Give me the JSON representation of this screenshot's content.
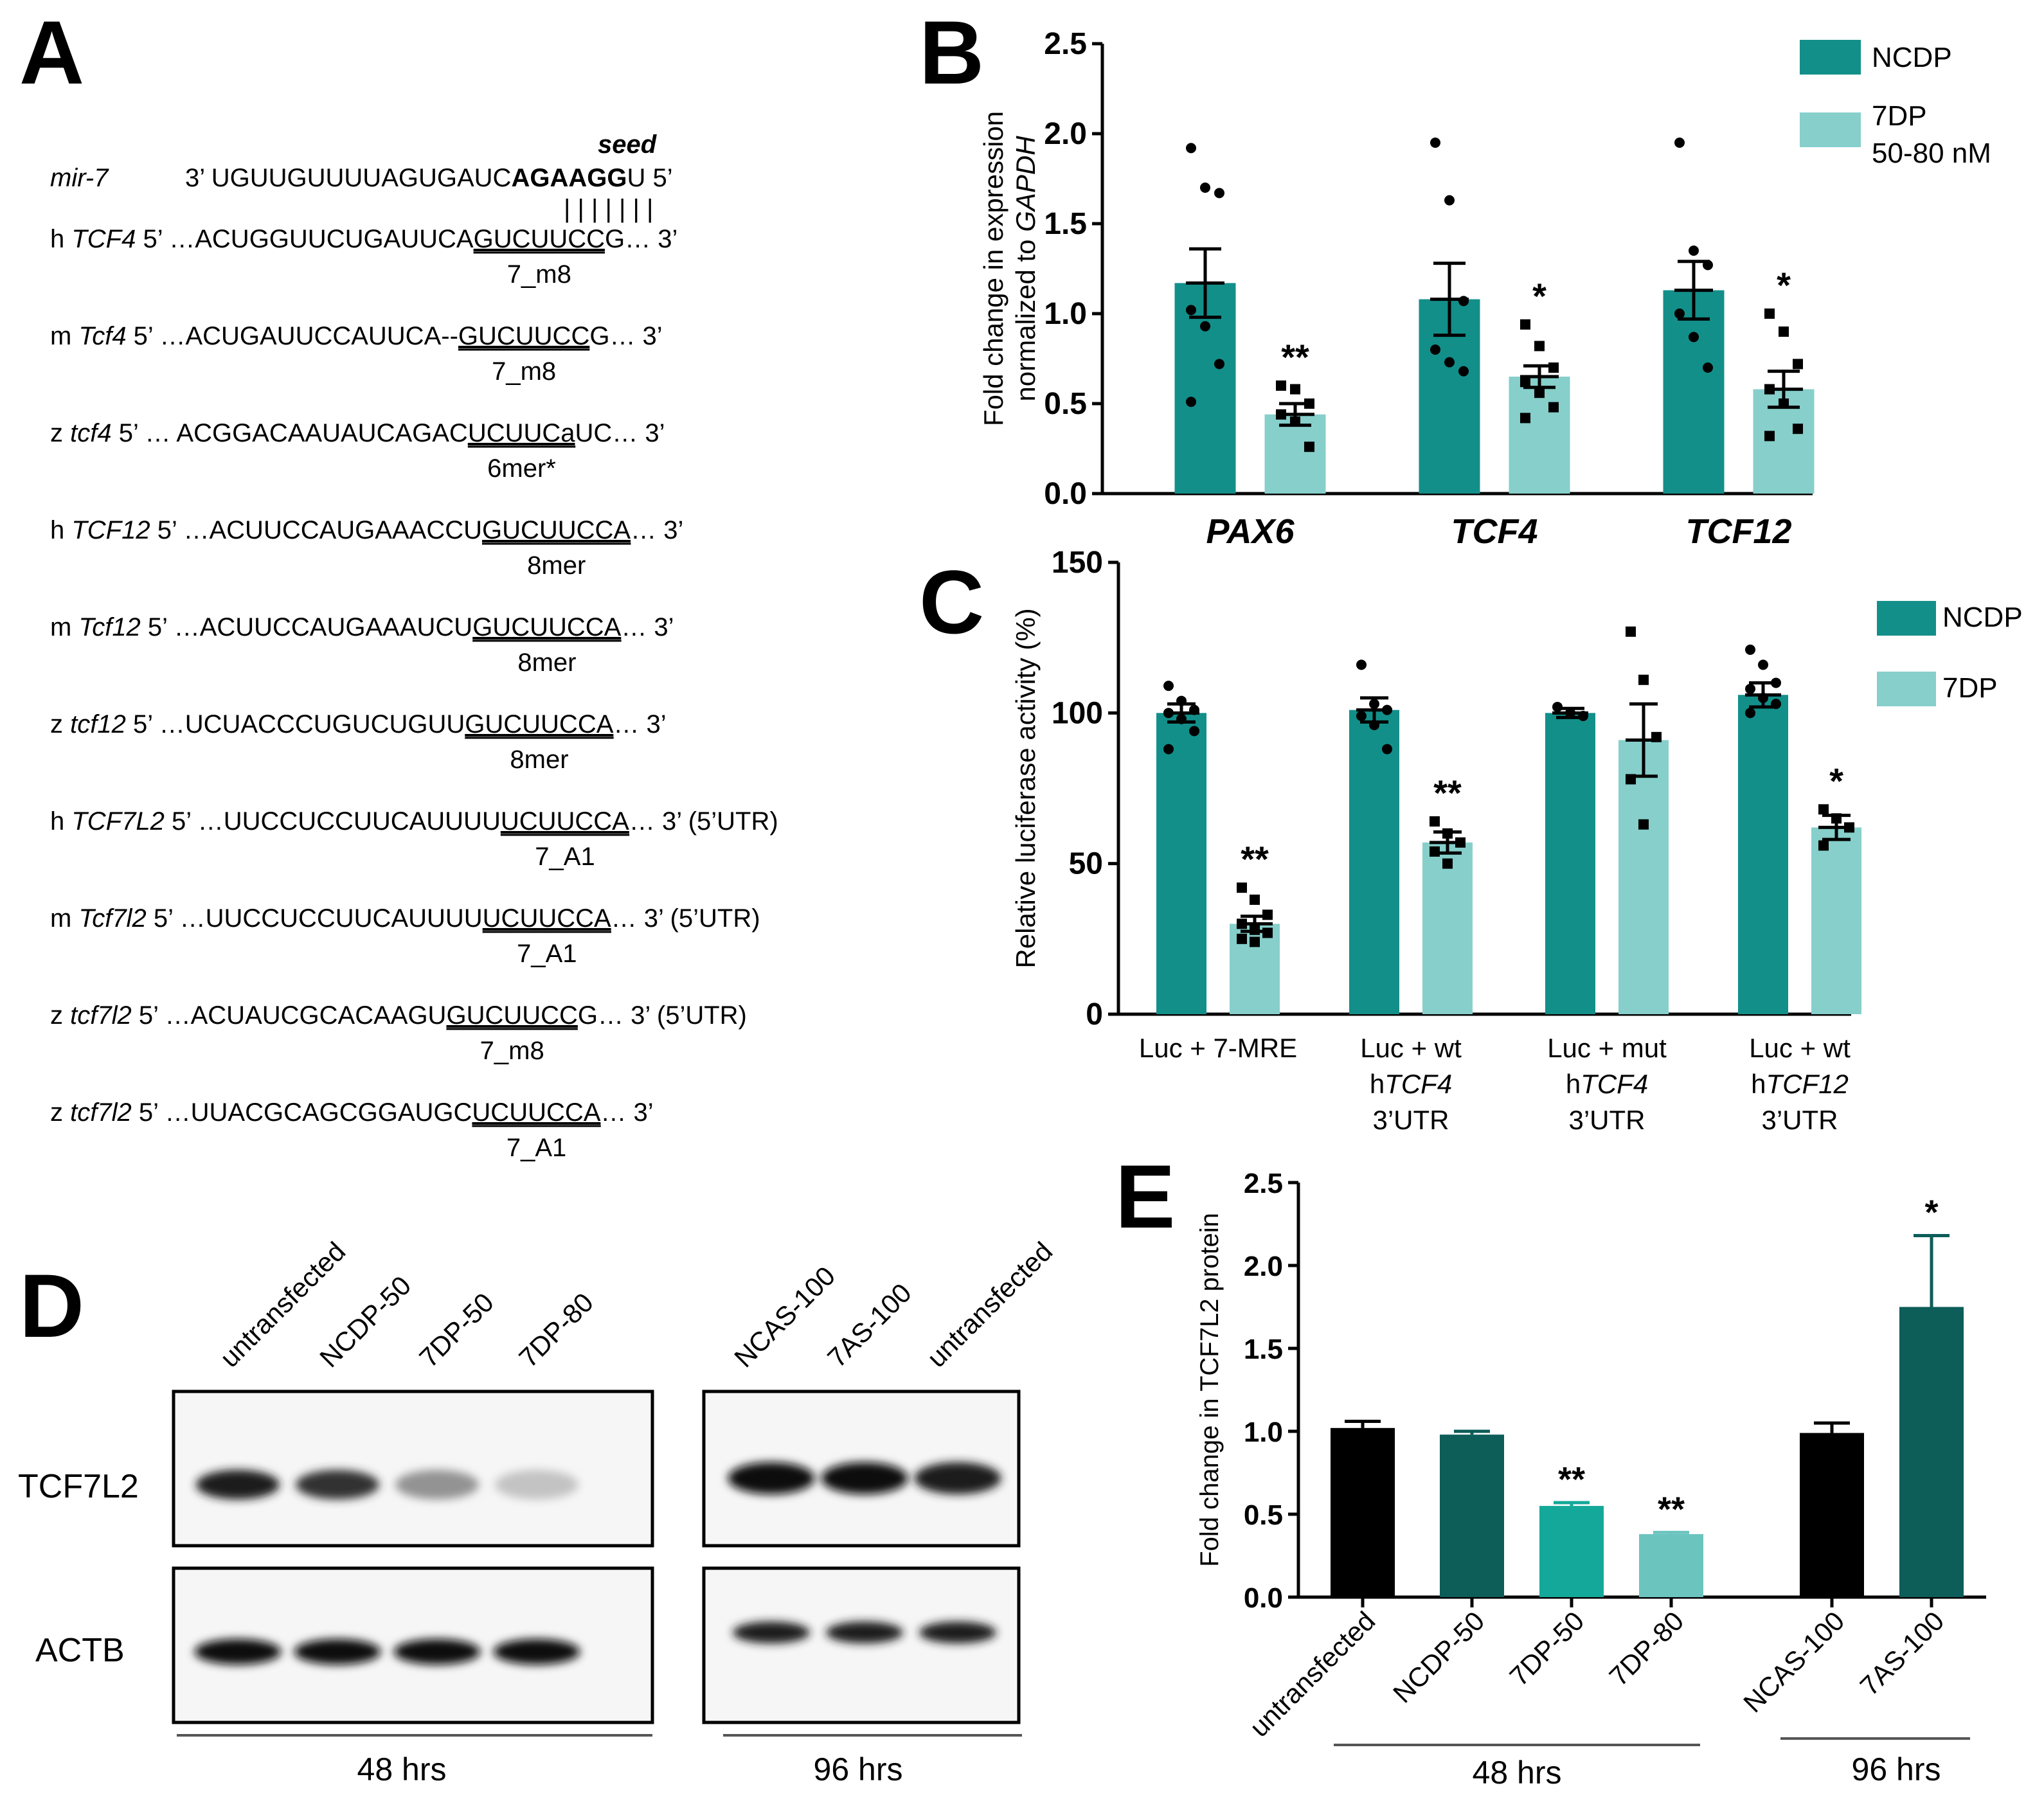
{
  "panels": {
    "A": "A",
    "B": "B",
    "C": "C",
    "D": "D",
    "E": "E"
  },
  "panelA": {
    "seed_label": "seed",
    "mir_name": "mir-7",
    "mir_prefix": "3’ UGUUGUUUUAGUGAUC",
    "mir_bold": "AGAAGG",
    "mir_suffix": "U 5’",
    "pairing_bars": "| | | | | | |",
    "rows": [
      {
        "sp": "h ",
        "gene": "TCF4",
        "pre": " 5’ …ACUGGUUCUGAUUCA",
        "site": "GUCUUCC",
        "post": "G… 3’",
        "type": "7_m8"
      },
      {
        "sp": "m ",
        "gene": "Tcf4",
        "pre": "  5’ …ACUGAUUCCAUUCA--",
        "site": "GUCUUCC",
        "post": "G… 3’",
        "type": "7_m8"
      },
      {
        "sp": "z ",
        "gene": "tcf4",
        "pre": "     5’ … ACGGACAAUAUCAGAC",
        "site": "UCUUCa",
        "post": "UC… 3’",
        "type": "6mer*"
      },
      {
        "sp": "h ",
        "gene": "TCF12",
        "pre": " 5’ …ACUUCCAUGAAACCU",
        "site": "GUCUUCCA",
        "post": "… 3’",
        "type": "8mer"
      },
      {
        "sp": "m ",
        "gene": "Tcf12",
        "pre": " 5’ …ACUUCCAUGAAAUCU",
        "site": "GUCUUCCA",
        "post": "… 3’",
        "type": "8mer"
      },
      {
        "sp": "z ",
        "gene": "tcf12",
        "pre": "  5’ …UCUACCCUGUCUGUU",
        "site": "GUCUUCCA",
        "post": "… 3’",
        "type": "8mer"
      },
      {
        "sp": "h ",
        "gene": "TCF7L2",
        "pre": " 5’ …UUCCUCCUUCAUUUU",
        "site": "UCUUCCA",
        "post": "… 3’ (5’UTR)",
        "type": "7_A1"
      },
      {
        "sp": "m ",
        "gene": "Tcf7l2",
        "pre": "   5’ …UUCCUCCUUCAUUUU",
        "site": "UCUUCCA",
        "post": "… 3’ (5’UTR)",
        "type": "7_A1"
      },
      {
        "sp": "z ",
        "gene": "tcf7l2",
        "pre": "    5’ …ACUAUCGCACAAGU",
        "site": "GUCUUCC",
        "post": "G… 3’ (5’UTR)",
        "type": "7_m8"
      },
      {
        "sp": "z ",
        "gene": "tcf7l2",
        "pre": "    5’ …UUACGCAGCGGAUGC",
        "site": "UCUUCCA",
        "post": "… 3’",
        "type": "7_A1"
      }
    ]
  },
  "chart_data": [
    {
      "id": "B",
      "type": "bar",
      "ylabel": "Fold change in expression normalized to GAPDH",
      "ylabel_line1": "Fold change in expression",
      "ylabel_line2_prefix": "normalized to ",
      "ylabel_line2_italic": "GAPDH",
      "ylim": [
        0,
        2.5
      ],
      "yticks": [
        "0.0",
        "0.5",
        "1.0",
        "1.5",
        "2.0",
        "2.5"
      ],
      "categories": [
        "PAX6",
        "TCF4",
        "TCF12"
      ],
      "legend": [
        "NCDP",
        "7DP",
        "50-80 nM"
      ],
      "colors": {
        "NCDP": "#138f8a",
        "7DP": "#86cfcb"
      },
      "series": [
        {
          "name": "NCDP",
          "values": [
            1.17,
            1.08,
            1.13
          ],
          "sem": [
            0.19,
            0.2,
            0.16
          ],
          "points": [
            [
              1.92,
              1.7,
              1.67,
              1.02,
              0.93,
              0.72,
              0.51
            ],
            [
              1.95,
              1.63,
              1.07,
              0.8,
              0.73,
              0.68
            ],
            [
              1.95,
              1.35,
              1.27,
              1.0,
              0.87,
              0.7
            ]
          ]
        },
        {
          "name": "7DP",
          "values": [
            0.44,
            0.65,
            0.58
          ],
          "sem": [
            0.06,
            0.06,
            0.1
          ],
          "points": [
            [
              0.6,
              0.58,
              0.5,
              0.44,
              0.4,
              0.26
            ],
            [
              0.94,
              0.82,
              0.7,
              0.62,
              0.56,
              0.48,
              0.42
            ],
            [
              1.0,
              0.9,
              0.72,
              0.58,
              0.5,
              0.36,
              0.32
            ]
          ]
        }
      ],
      "significance": [
        "**",
        "*",
        "*"
      ]
    },
    {
      "id": "C",
      "type": "bar",
      "ylabel": "Relative luciferase activity (%)",
      "ylim": [
        0,
        150
      ],
      "yticks": [
        "0",
        "50",
        "100",
        "150"
      ],
      "categories": [
        [
          "Luc + 7-MRE"
        ],
        [
          "Luc + wt",
          "hTCF4",
          "3’UTR"
        ],
        [
          "Luc + mut",
          "hTCF4",
          "3’UTR"
        ],
        [
          "Luc + wt",
          "hTCF12",
          "3’UTR"
        ]
      ],
      "category_italic_genes": [
        "",
        "TCF4",
        "TCF4",
        "TCF12"
      ],
      "legend": [
        "NCDP",
        "7DP"
      ],
      "colors": {
        "NCDP": "#138f8a",
        "7DP": "#86cfcb"
      },
      "series": [
        {
          "name": "NCDP",
          "values": [
            100,
            101,
            100,
            106
          ],
          "sem": [
            3,
            4,
            1.5,
            4
          ],
          "points": [
            [
              109,
              104,
              101,
              100,
              98,
              94,
              88
            ],
            [
              116,
              103,
              101,
              99,
              96,
              88
            ],
            [
              102,
              100,
              99
            ],
            [
              121,
              116,
              110,
              108,
              105,
              103,
              100
            ]
          ]
        },
        {
          "name": "7DP",
          "values": [
            30,
            57,
            91,
            62
          ],
          "sem": [
            2.5,
            3.5,
            12,
            4
          ],
          "points": [
            [
              42,
              38,
              33,
              30,
              28,
              27,
              25,
              24
            ],
            [
              64,
              60,
              57,
              54,
              50
            ],
            [
              127,
              111,
              92,
              78,
              63
            ],
            [
              68,
              65,
              62,
              56
            ]
          ]
        }
      ],
      "significance": [
        "**",
        "**",
        "",
        "*"
      ]
    },
    {
      "id": "E",
      "type": "bar",
      "ylabel": "Fold change in TCF7L2 protein",
      "ylim": [
        0,
        2.5
      ],
      "yticks": [
        "0.0",
        "0.5",
        "1.0",
        "1.5",
        "2.0",
        "2.5"
      ],
      "categories": [
        "untransfected",
        "NCDP-50",
        "7DP-50",
        "7DP-80",
        "NCAS-100",
        "7AS-100"
      ],
      "values": [
        1.02,
        0.98,
        0.55,
        0.38,
        0.99,
        1.75
      ],
      "sem": [
        0.04,
        0.02,
        0.02,
        0.01,
        0.06,
        0.43
      ],
      "colors": [
        "#000000",
        "#0d5d59",
        "#13a899",
        "#6cc4bf",
        "#000000",
        "#0d5d59"
      ],
      "significance": [
        "",
        "",
        "**",
        "**",
        "",
        "*"
      ],
      "groups": [
        "48 hrs",
        "96 hrs"
      ]
    }
  ],
  "panelD": {
    "lanes_48": [
      "untransfected",
      "NCDP-50",
      "7DP-50",
      "7DP-80"
    ],
    "lanes_96": [
      "NCAS-100",
      "7AS-100",
      "untransfected"
    ],
    "proteins": [
      "TCF7L2",
      "ACTB"
    ],
    "time_48": "48 hrs",
    "time_96": "96 hrs",
    "band_intensity_tcf": [
      0.95,
      0.85,
      0.45,
      0.25
    ],
    "band_intensity_tcf_96": [
      1.0,
      1.0,
      0.95
    ],
    "band_intensity_actb": [
      1.0,
      1.0,
      1.0,
      1.0
    ],
    "band_intensity_actb_96": [
      0.95,
      0.95,
      0.95
    ]
  }
}
